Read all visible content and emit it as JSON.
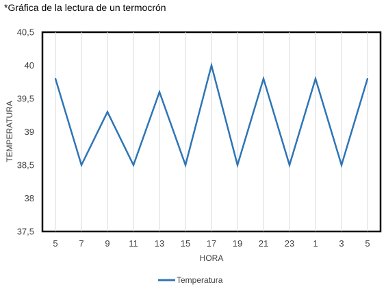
{
  "chart_data": {
    "type": "line",
    "title": "*Gráfica de la lectura de un termocrón",
    "xlabel": "HORA",
    "ylabel": "TEMPERATURA",
    "categories": [
      "5",
      "7",
      "9",
      "11",
      "13",
      "15",
      "17",
      "19",
      "21",
      "23",
      "1",
      "3",
      "5"
    ],
    "series": [
      {
        "name": "Temperatura",
        "values": [
          39.8,
          38.5,
          39.3,
          38.5,
          39.6,
          38.5,
          40.0,
          38.5,
          39.8,
          38.5,
          39.8,
          38.5,
          39.8
        ]
      }
    ],
    "ylim": [
      37.5,
      40.5
    ],
    "yticks": [
      "37,5",
      "38",
      "38,5",
      "39",
      "39,5",
      "40",
      "40,5"
    ],
    "grid": "vertical",
    "legend": "bottom",
    "colors": {
      "line": "#2E75B6",
      "grid": "#D9D9D9",
      "frame": "#000000"
    }
  }
}
